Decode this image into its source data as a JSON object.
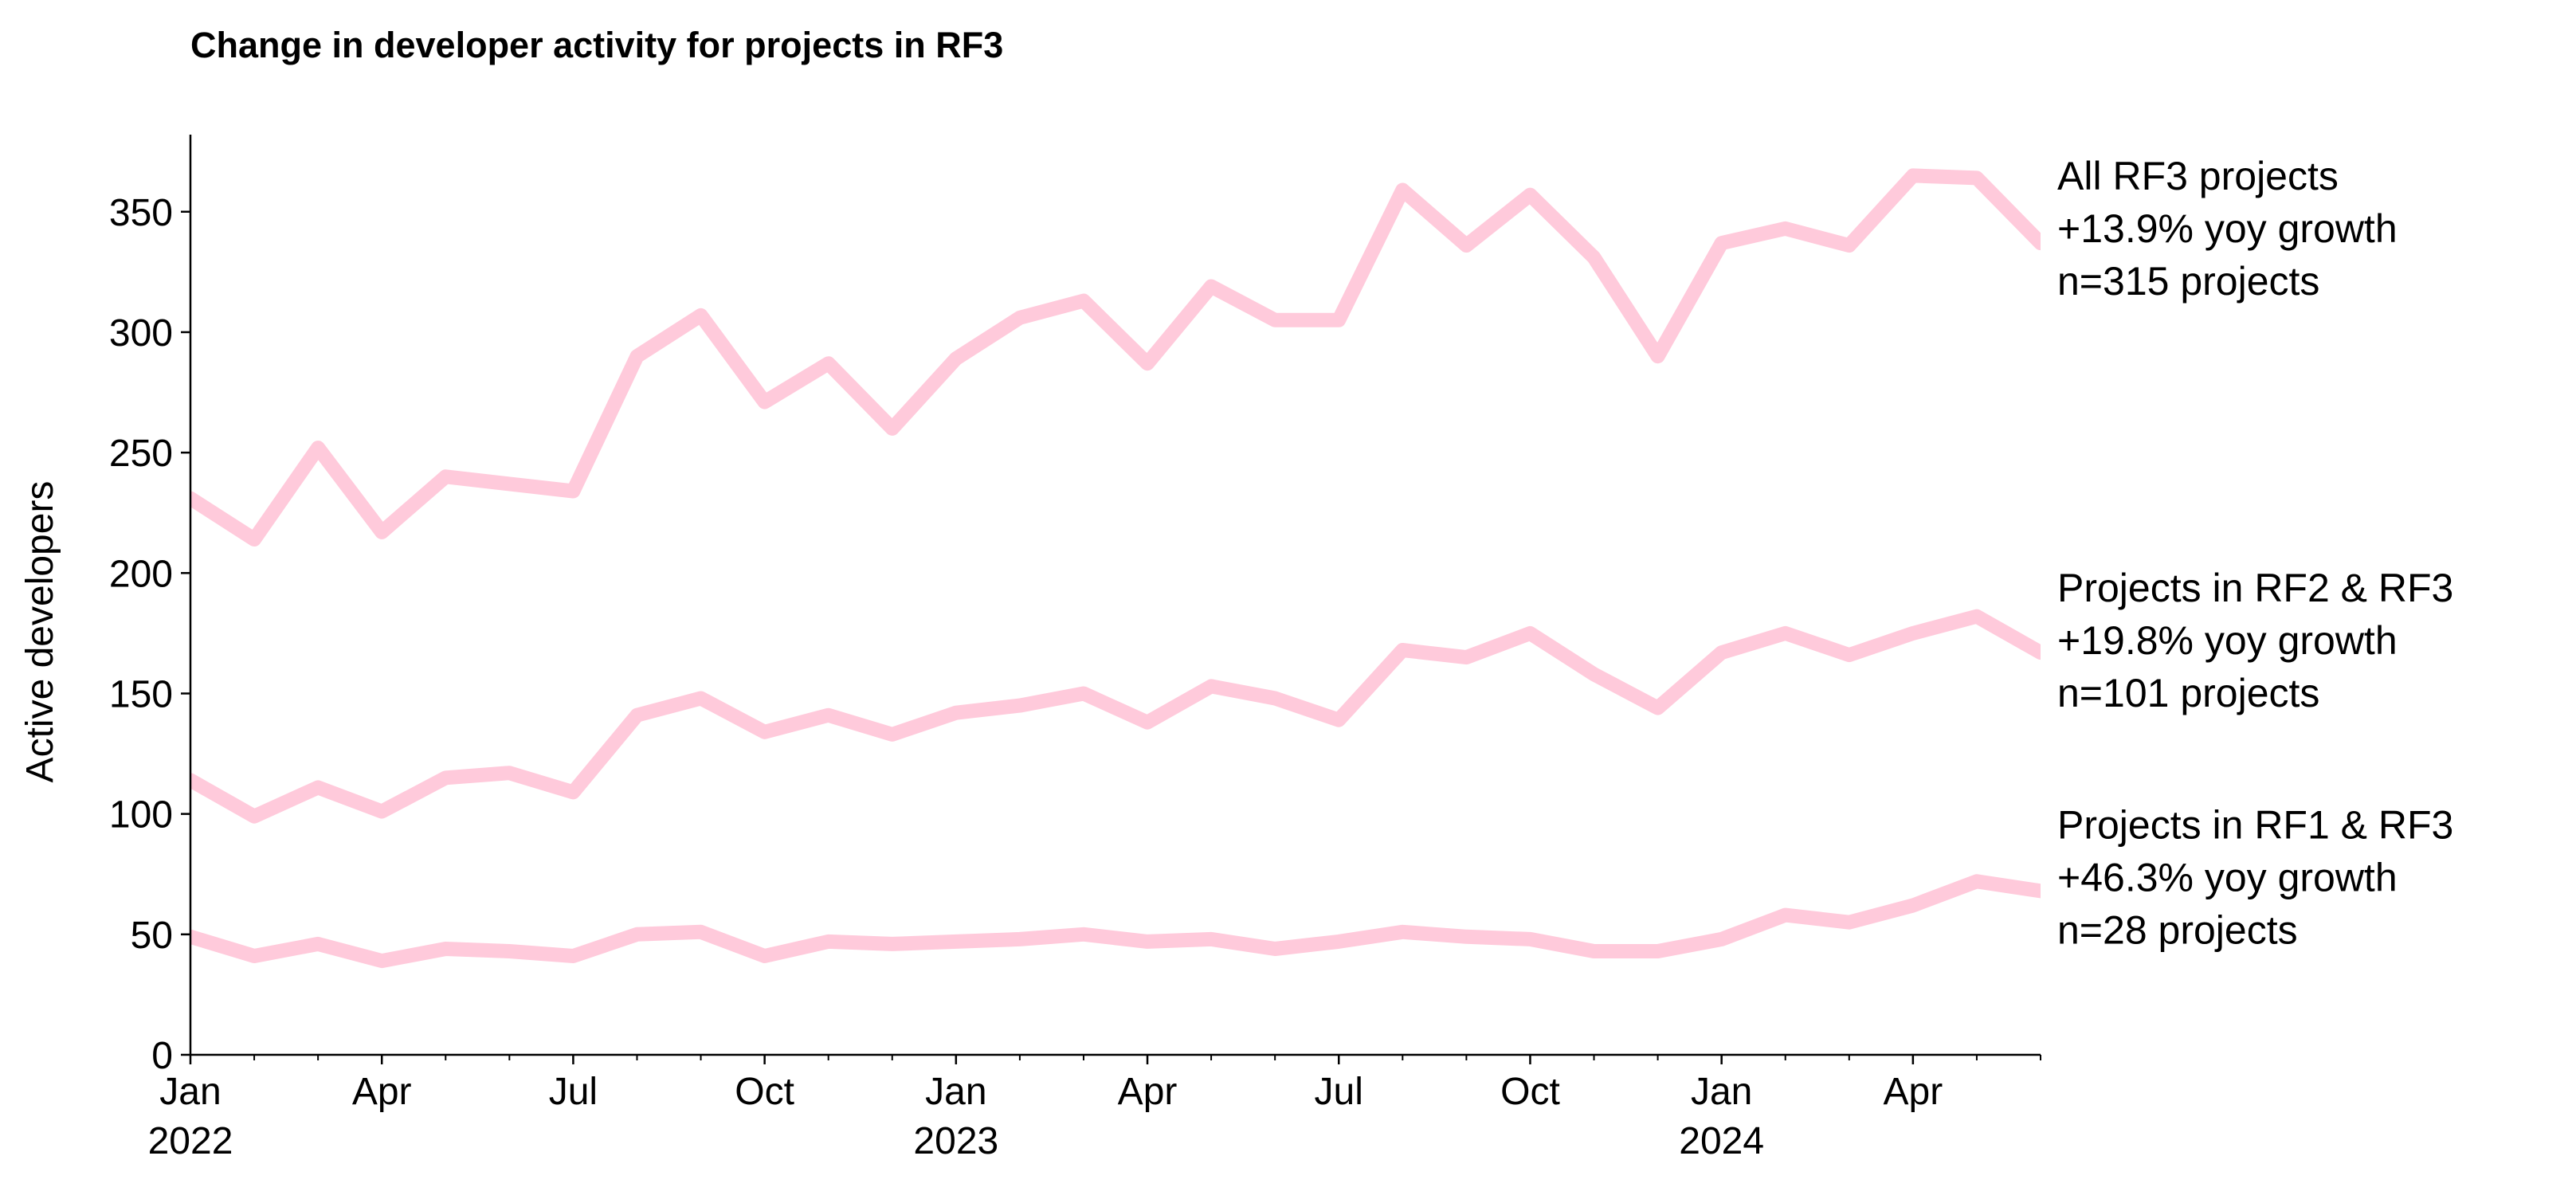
{
  "chart_data": {
    "type": "line",
    "title": "Change in developer activity for projects in RF3",
    "xlabel": "",
    "ylabel": "Active developers",
    "ylim": [
      0,
      382
    ],
    "xlim": [
      "2022-01",
      "2024-06"
    ],
    "grid": false,
    "line_color": "#ffcadb",
    "yticks": [
      0,
      50,
      100,
      150,
      200,
      250,
      300,
      350
    ],
    "xticks": [
      {
        "date": "2022-01",
        "label": "Jan",
        "year": "2022"
      },
      {
        "date": "2022-04",
        "label": "Apr"
      },
      {
        "date": "2022-07",
        "label": "Jul"
      },
      {
        "date": "2022-10",
        "label": "Oct"
      },
      {
        "date": "2023-01",
        "label": "Jan",
        "year": "2023"
      },
      {
        "date": "2023-04",
        "label": "Apr"
      },
      {
        "date": "2023-07",
        "label": "Jul"
      },
      {
        "date": "2023-10",
        "label": "Oct"
      },
      {
        "date": "2024-01",
        "label": "Jan",
        "year": "2024"
      },
      {
        "date": "2024-04",
        "label": "Apr"
      }
    ],
    "x": [
      "2022-01",
      "2022-02",
      "2022-03",
      "2022-04",
      "2022-05",
      "2022-06",
      "2022-07",
      "2022-08",
      "2022-09",
      "2022-10",
      "2022-11",
      "2022-12",
      "2023-01",
      "2023-02",
      "2023-03",
      "2023-04",
      "2023-05",
      "2023-06",
      "2023-07",
      "2023-08",
      "2023-09",
      "2023-10",
      "2023-11",
      "2023-12",
      "2024-01",
      "2024-02",
      "2024-03",
      "2024-04",
      "2024-05",
      "2024-06"
    ],
    "series": [
      {
        "name": "All RF3 projects",
        "annotation": [
          "All RF3 projects",
          "+13.9% yoy growth",
          "n=315 projects"
        ],
        "values": [
          231,
          214,
          252,
          217,
          240,
          237,
          234,
          290,
          307,
          271,
          287,
          260,
          289,
          306,
          313,
          287,
          319,
          305,
          305,
          359,
          336,
          357,
          331,
          290,
          337,
          343,
          336,
          365,
          364,
          337
        ]
      },
      {
        "name": "Projects in RF2 & RF3",
        "annotation": [
          "Projects in RF2 & RF3",
          "+19.8% yoy growth",
          "n=101 projects"
        ],
        "values": [
          114,
          99,
          111,
          101,
          115,
          117,
          109,
          141,
          148,
          134,
          141,
          133,
          142,
          145,
          150,
          138,
          153,
          148,
          139,
          168,
          165,
          175,
          158,
          144,
          167,
          175,
          166,
          175,
          182,
          167
        ]
      },
      {
        "name": "Projects in RF1 & RF3",
        "annotation": [
          "Projects in RF1 & RF3",
          "+46.3% yoy growth",
          "n=28 projects"
        ],
        "values": [
          49,
          41,
          46,
          39,
          44,
          43,
          41,
          50,
          51,
          41,
          47,
          46,
          47,
          48,
          50,
          47,
          48,
          44,
          47,
          51,
          49,
          48,
          43,
          43,
          48,
          58,
          55,
          62,
          72,
          68
        ]
      }
    ]
  }
}
